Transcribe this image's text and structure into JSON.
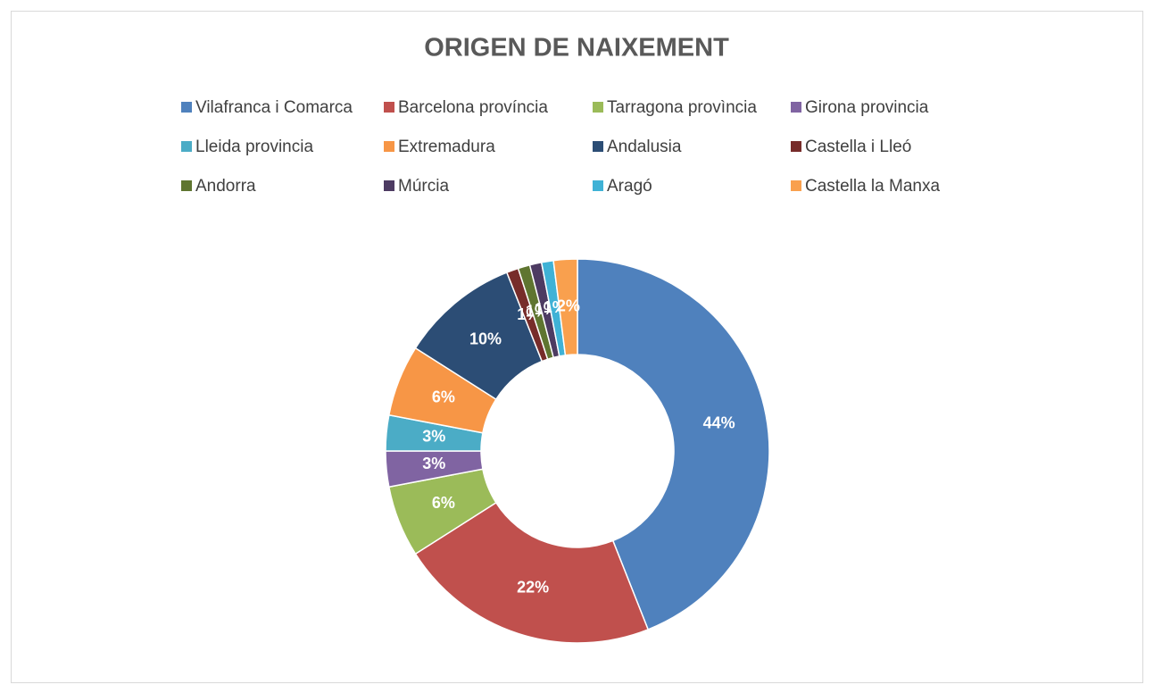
{
  "chart_data": {
    "type": "donut",
    "title": "ORIGEN DE NAIXEMENT",
    "categories": [
      "Vilafranca i Comarca",
      "Barcelona província",
      "Tarragona provìncia",
      "Girona provincia",
      "Lleida provincia",
      "Extremadura",
      "Andalusia",
      "Castella i Lleó",
      "Andorra",
      "Múrcia",
      "Aragó",
      "Castella la Manxa"
    ],
    "values": [
      44,
      22,
      6,
      3,
      3,
      6,
      10,
      1,
      1,
      1,
      1,
      2
    ],
    "value_labels": [
      "44%",
      "22%",
      "6%",
      "3%",
      "3%",
      "6%",
      "10%",
      "1%",
      "1%",
      "1%",
      "1%",
      "2%"
    ],
    "colors": [
      "#4f81bd",
      "#c0504d",
      "#9bbb59",
      "#8064a2",
      "#4bacc6",
      "#f79646",
      "#2c4d75",
      "#772c2a",
      "#5f7530",
      "#4d3b62",
      "#3fb2d6",
      "#f9a04e"
    ],
    "legend": "top"
  }
}
